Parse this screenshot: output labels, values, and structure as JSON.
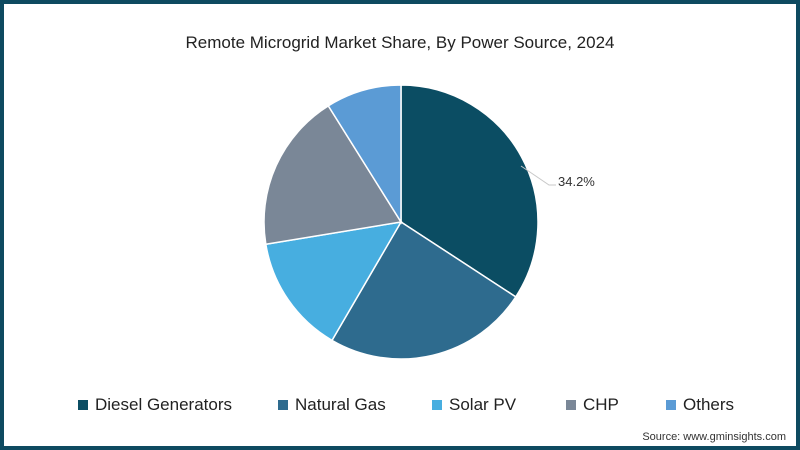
{
  "title": "Remote Microgrid Market Share, By Power Source, 2024",
  "callout": "34.2%",
  "source": "Source: www.gminsights.com",
  "legend": [
    {
      "label": "Diesel Generators",
      "color": "#0b4d63"
    },
    {
      "label": "Natural Gas",
      "color": "#2e6b8e"
    },
    {
      "label": "Solar PV",
      "color": "#47aee0"
    },
    {
      "label": "CHP",
      "color": "#7a8797"
    },
    {
      "label": "Others",
      "color": "#5b9bd5"
    }
  ],
  "chart_data": {
    "type": "pie",
    "title": "Remote Microgrid Market Share, By Power Source, 2024",
    "categories": [
      "Diesel Generators",
      "Natural Gas",
      "Solar PV",
      "CHP",
      "Others"
    ],
    "values": [
      34.2,
      24.2,
      14.0,
      18.7,
      8.9
    ],
    "colors": [
      "#0b4d63",
      "#2e6b8e",
      "#47aee0",
      "#7a8797",
      "#5b9bd5"
    ],
    "labeled_values": {
      "Diesel Generators": "34.2%"
    },
    "legend_position": "bottom",
    "start_angle": "12 o'clock, clockwise"
  }
}
